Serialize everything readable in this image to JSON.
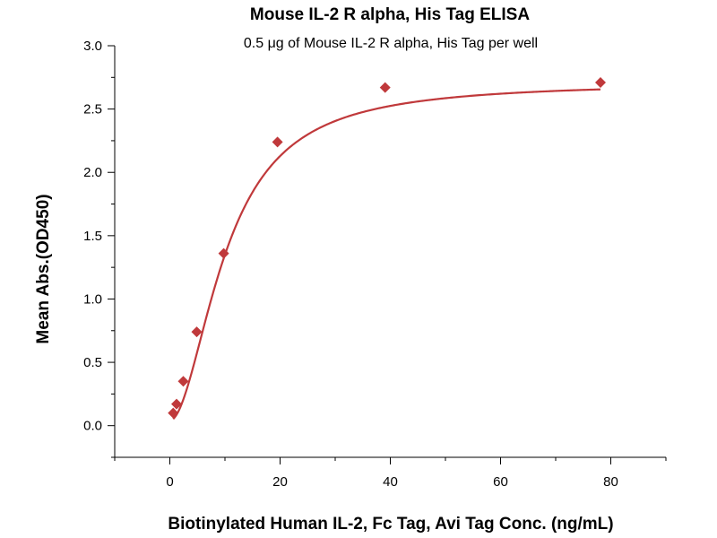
{
  "chart_data": {
    "type": "scatter",
    "title": "Mouse IL-2 R alpha, His Tag ELISA",
    "subtitle": "0.5 μg of Mouse IL-2 R alpha, His Tag per well",
    "xlabel": "Biotinylated Human IL-2, Fc Tag, Avi Tag Conc. (ng/mL)",
    "ylabel": "Mean Abs.(OD450)",
    "xlim": [
      -10,
      90
    ],
    "ylim": [
      -0.25,
      3.0
    ],
    "xticks": [
      0,
      20,
      40,
      60,
      80
    ],
    "yticks": [
      0.0,
      0.5,
      1.0,
      1.5,
      2.0,
      2.5,
      3.0
    ],
    "xtick_labels": [
      "0",
      "20",
      "40",
      "60",
      "80"
    ],
    "ytick_labels": [
      "0.0",
      "0.5",
      "1.0",
      "1.5",
      "2.0",
      "2.5",
      "3.0"
    ],
    "grid": false,
    "series": [
      {
        "marker": "diamond",
        "color": "#c0393b",
        "x": [
          0.61,
          1.22,
          2.44,
          4.88,
          9.77,
          19.53,
          39.06,
          78.13
        ],
        "y": [
          0.1,
          0.17,
          0.35,
          0.74,
          1.36,
          2.24,
          2.67,
          2.71
        ]
      }
    ],
    "fit": {
      "type": "4PL",
      "color": "#c0393b",
      "bottom": 0.04,
      "top": 2.71,
      "ec50": 10.2,
      "hill": 1.9
    }
  }
}
